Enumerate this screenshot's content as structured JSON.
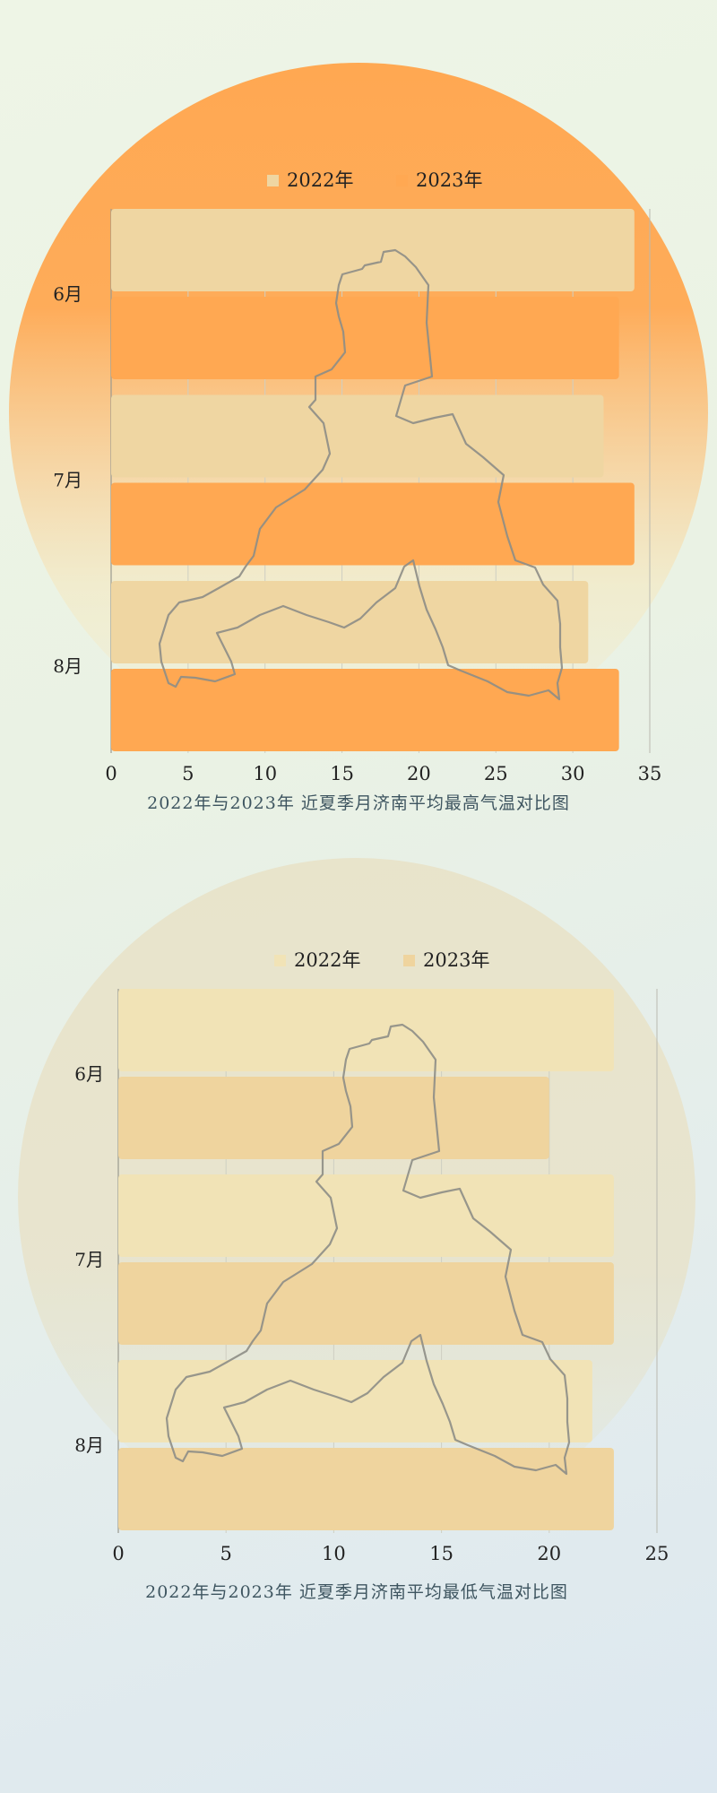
{
  "charts": [
    {
      "title": "2022年与2023年 近夏季月济南平均最高气温对比图",
      "type": "bar",
      "orientation": "horizontal",
      "categories": [
        "6月",
        "7月",
        "8月"
      ],
      "series": [
        {
          "name": "2022年",
          "values": [
            34,
            32,
            31
          ]
        },
        {
          "name": "2023年",
          "values": [
            33,
            34,
            33
          ]
        }
      ],
      "xlim": [
        0,
        35
      ],
      "x_ticks": [
        0,
        5,
        10,
        15,
        20,
        25,
        30,
        35
      ],
      "legend": "top",
      "grid": true,
      "colors": {
        "s0": "#efd6a2",
        "s1": "#ffa852",
        "disc_top": "#ffa852",
        "disc_bottom": "#f5e8c0"
      }
    },
    {
      "title": "2022年与2023年 近夏季月济南平均最低气温对比图",
      "type": "bar",
      "orientation": "horizontal",
      "categories": [
        "6月",
        "7月",
        "8月"
      ],
      "series": [
        {
          "name": "2022年",
          "values": [
            23,
            23,
            22
          ]
        },
        {
          "name": "2023年",
          "values": [
            20,
            23,
            23
          ]
        }
      ],
      "xlim": [
        0,
        25
      ],
      "x_ticks": [
        0,
        5,
        10,
        15,
        20,
        25
      ],
      "legend": "top",
      "grid": true,
      "colors": {
        "s0": "#f1e3b6",
        "s1": "#efd49e",
        "disc_top": "#e8e2c8",
        "disc_bottom": "#e5e3cc"
      }
    }
  ],
  "chart_data": [
    {
      "type": "bar",
      "title": "2022年与2023年 近夏季月济南平均最高气温对比图",
      "categories": [
        "6月",
        "7月",
        "8月"
      ],
      "series": [
        {
          "name": "2022年",
          "values": [
            34,
            32,
            31
          ]
        },
        {
          "name": "2023年",
          "values": [
            33,
            34,
            33
          ]
        }
      ],
      "xlim": [
        0,
        35
      ]
    },
    {
      "type": "bar",
      "title": "2022年与2023年 近夏季月济南平均最低气温对比图",
      "categories": [
        "6月",
        "7月",
        "8月"
      ],
      "series": [
        {
          "name": "2022年",
          "values": [
            23,
            23,
            22
          ]
        },
        {
          "name": "2023年",
          "values": [
            20,
            23,
            23
          ]
        }
      ],
      "xlim": [
        0,
        25
      ]
    }
  ]
}
